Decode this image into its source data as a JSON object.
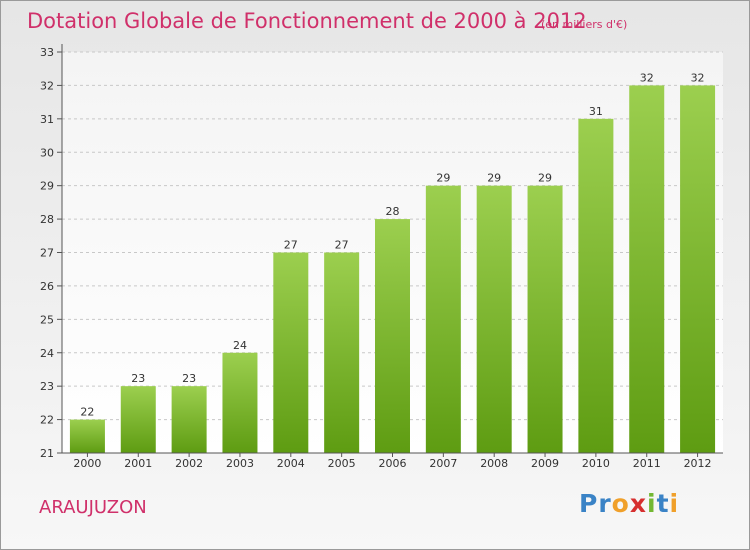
{
  "chart_data": {
    "type": "bar",
    "title": "Dotation Globale de Fonctionnement de 2000 à 2012",
    "subtitle": "(en milliers d'€)",
    "categories": [
      "2000",
      "2001",
      "2002",
      "2003",
      "2004",
      "2005",
      "2006",
      "2007",
      "2008",
      "2009",
      "2010",
      "2011",
      "2012"
    ],
    "values": [
      22,
      23,
      23,
      24,
      27,
      27,
      28,
      29,
      29,
      29,
      31,
      32,
      32
    ],
    "ylim": [
      21,
      33
    ],
    "yticks": [
      21,
      22,
      23,
      24,
      25,
      26,
      27,
      28,
      29,
      30,
      31,
      32,
      33
    ],
    "grid": "horizontal-dashed",
    "bar_color_top": "#9ccf4f",
    "bar_color_bottom": "#5e9c12",
    "data_labels": true
  },
  "footer": {
    "commune": "ARAUJUZON",
    "logo_letters": [
      {
        "ch": "P",
        "color": "#3a83c6"
      },
      {
        "ch": "r",
        "color": "#3a83c6"
      },
      {
        "ch": "o",
        "color": "#f0a02a"
      },
      {
        "ch": "x",
        "color": "#d62f2f"
      },
      {
        "ch": "i",
        "color": "#73b833"
      },
      {
        "ch": "t",
        "color": "#3a83c6"
      },
      {
        "ch": "i",
        "color": "#f0a02a"
      }
    ]
  }
}
